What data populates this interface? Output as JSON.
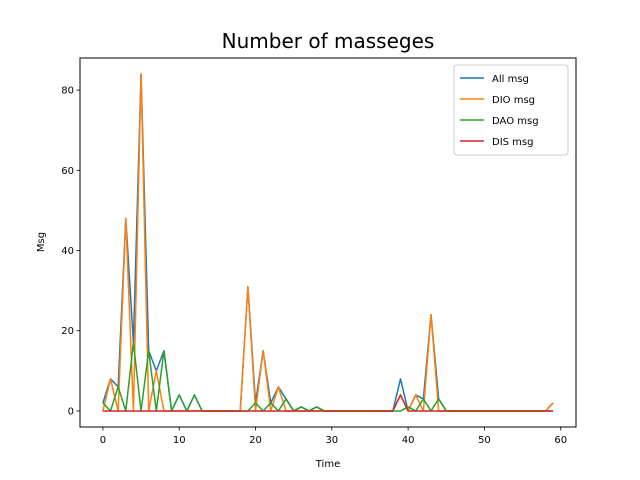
{
  "chart_data": {
    "type": "line",
    "title": "Number of masseges",
    "xlabel": "Time",
    "ylabel": "Msg",
    "xlim": [
      -3,
      62
    ],
    "ylim": [
      -4,
      88
    ],
    "xticks": [
      0,
      10,
      20,
      30,
      40,
      50,
      60
    ],
    "yticks": [
      0,
      20,
      40,
      60,
      80
    ],
    "grid": false,
    "legend_position": "top-right",
    "x": [
      0,
      1,
      2,
      3,
      4,
      5,
      6,
      7,
      8,
      9,
      10,
      11,
      12,
      13,
      14,
      15,
      16,
      17,
      18,
      19,
      20,
      21,
      22,
      23,
      24,
      25,
      26,
      27,
      28,
      29,
      30,
      31,
      32,
      33,
      34,
      35,
      36,
      37,
      38,
      39,
      40,
      41,
      42,
      43,
      44,
      45,
      46,
      47,
      48,
      49,
      50,
      51,
      52,
      53,
      54,
      55,
      56,
      57,
      58,
      59
    ],
    "series": [
      {
        "name": "All msg",
        "color": "#1f77b4",
        "values": [
          2,
          8,
          6,
          48,
          17,
          84,
          15,
          10,
          15,
          0,
          4,
          0,
          4,
          0,
          0,
          0,
          0,
          0,
          0,
          31,
          2,
          15,
          2,
          6,
          3,
          0,
          1,
          0,
          1,
          0,
          0,
          0,
          0,
          0,
          0,
          0,
          0,
          0,
          0,
          8,
          0,
          4,
          3,
          24,
          3,
          0,
          0,
          0,
          0,
          0,
          0,
          0,
          0,
          0,
          0,
          0,
          0,
          0,
          0,
          2
        ]
      },
      {
        "name": "DIO msg",
        "color": "#ff7f0e",
        "values": [
          0,
          8,
          0,
          48,
          0,
          84,
          0,
          10,
          0,
          0,
          0,
          0,
          0,
          0,
          0,
          0,
          0,
          0,
          0,
          31,
          0,
          15,
          0,
          6,
          0,
          0,
          0,
          0,
          0,
          0,
          0,
          0,
          0,
          0,
          0,
          0,
          0,
          0,
          0,
          4,
          0,
          4,
          0,
          24,
          0,
          0,
          0,
          0,
          0,
          0,
          0,
          0,
          0,
          0,
          0,
          0,
          0,
          0,
          0,
          2
        ]
      },
      {
        "name": "DAO msg",
        "color": "#2ca02c",
        "values": [
          2,
          0,
          6,
          0,
          17,
          0,
          15,
          0,
          15,
          0,
          4,
          0,
          4,
          0,
          0,
          0,
          0,
          0,
          0,
          0,
          2,
          0,
          2,
          0,
          3,
          0,
          1,
          0,
          1,
          0,
          0,
          0,
          0,
          0,
          0,
          0,
          0,
          0,
          0,
          0,
          1,
          0,
          3,
          0,
          3,
          0,
          0,
          0,
          0,
          0,
          0,
          0,
          0,
          0,
          0,
          0,
          0,
          0,
          0,
          0
        ]
      },
      {
        "name": "DIS msg",
        "color": "#d62728",
        "values": [
          0,
          0,
          0,
          0,
          0,
          0,
          0,
          0,
          0,
          0,
          0,
          0,
          0,
          0,
          0,
          0,
          0,
          0,
          0,
          0,
          0,
          0,
          0,
          0,
          0,
          0,
          0,
          0,
          0,
          0,
          0,
          0,
          0,
          0,
          0,
          0,
          0,
          0,
          0,
          4,
          0,
          0,
          0,
          0,
          0,
          0,
          0,
          0,
          0,
          0,
          0,
          0,
          0,
          0,
          0,
          0,
          0,
          0,
          0,
          0
        ]
      }
    ]
  }
}
